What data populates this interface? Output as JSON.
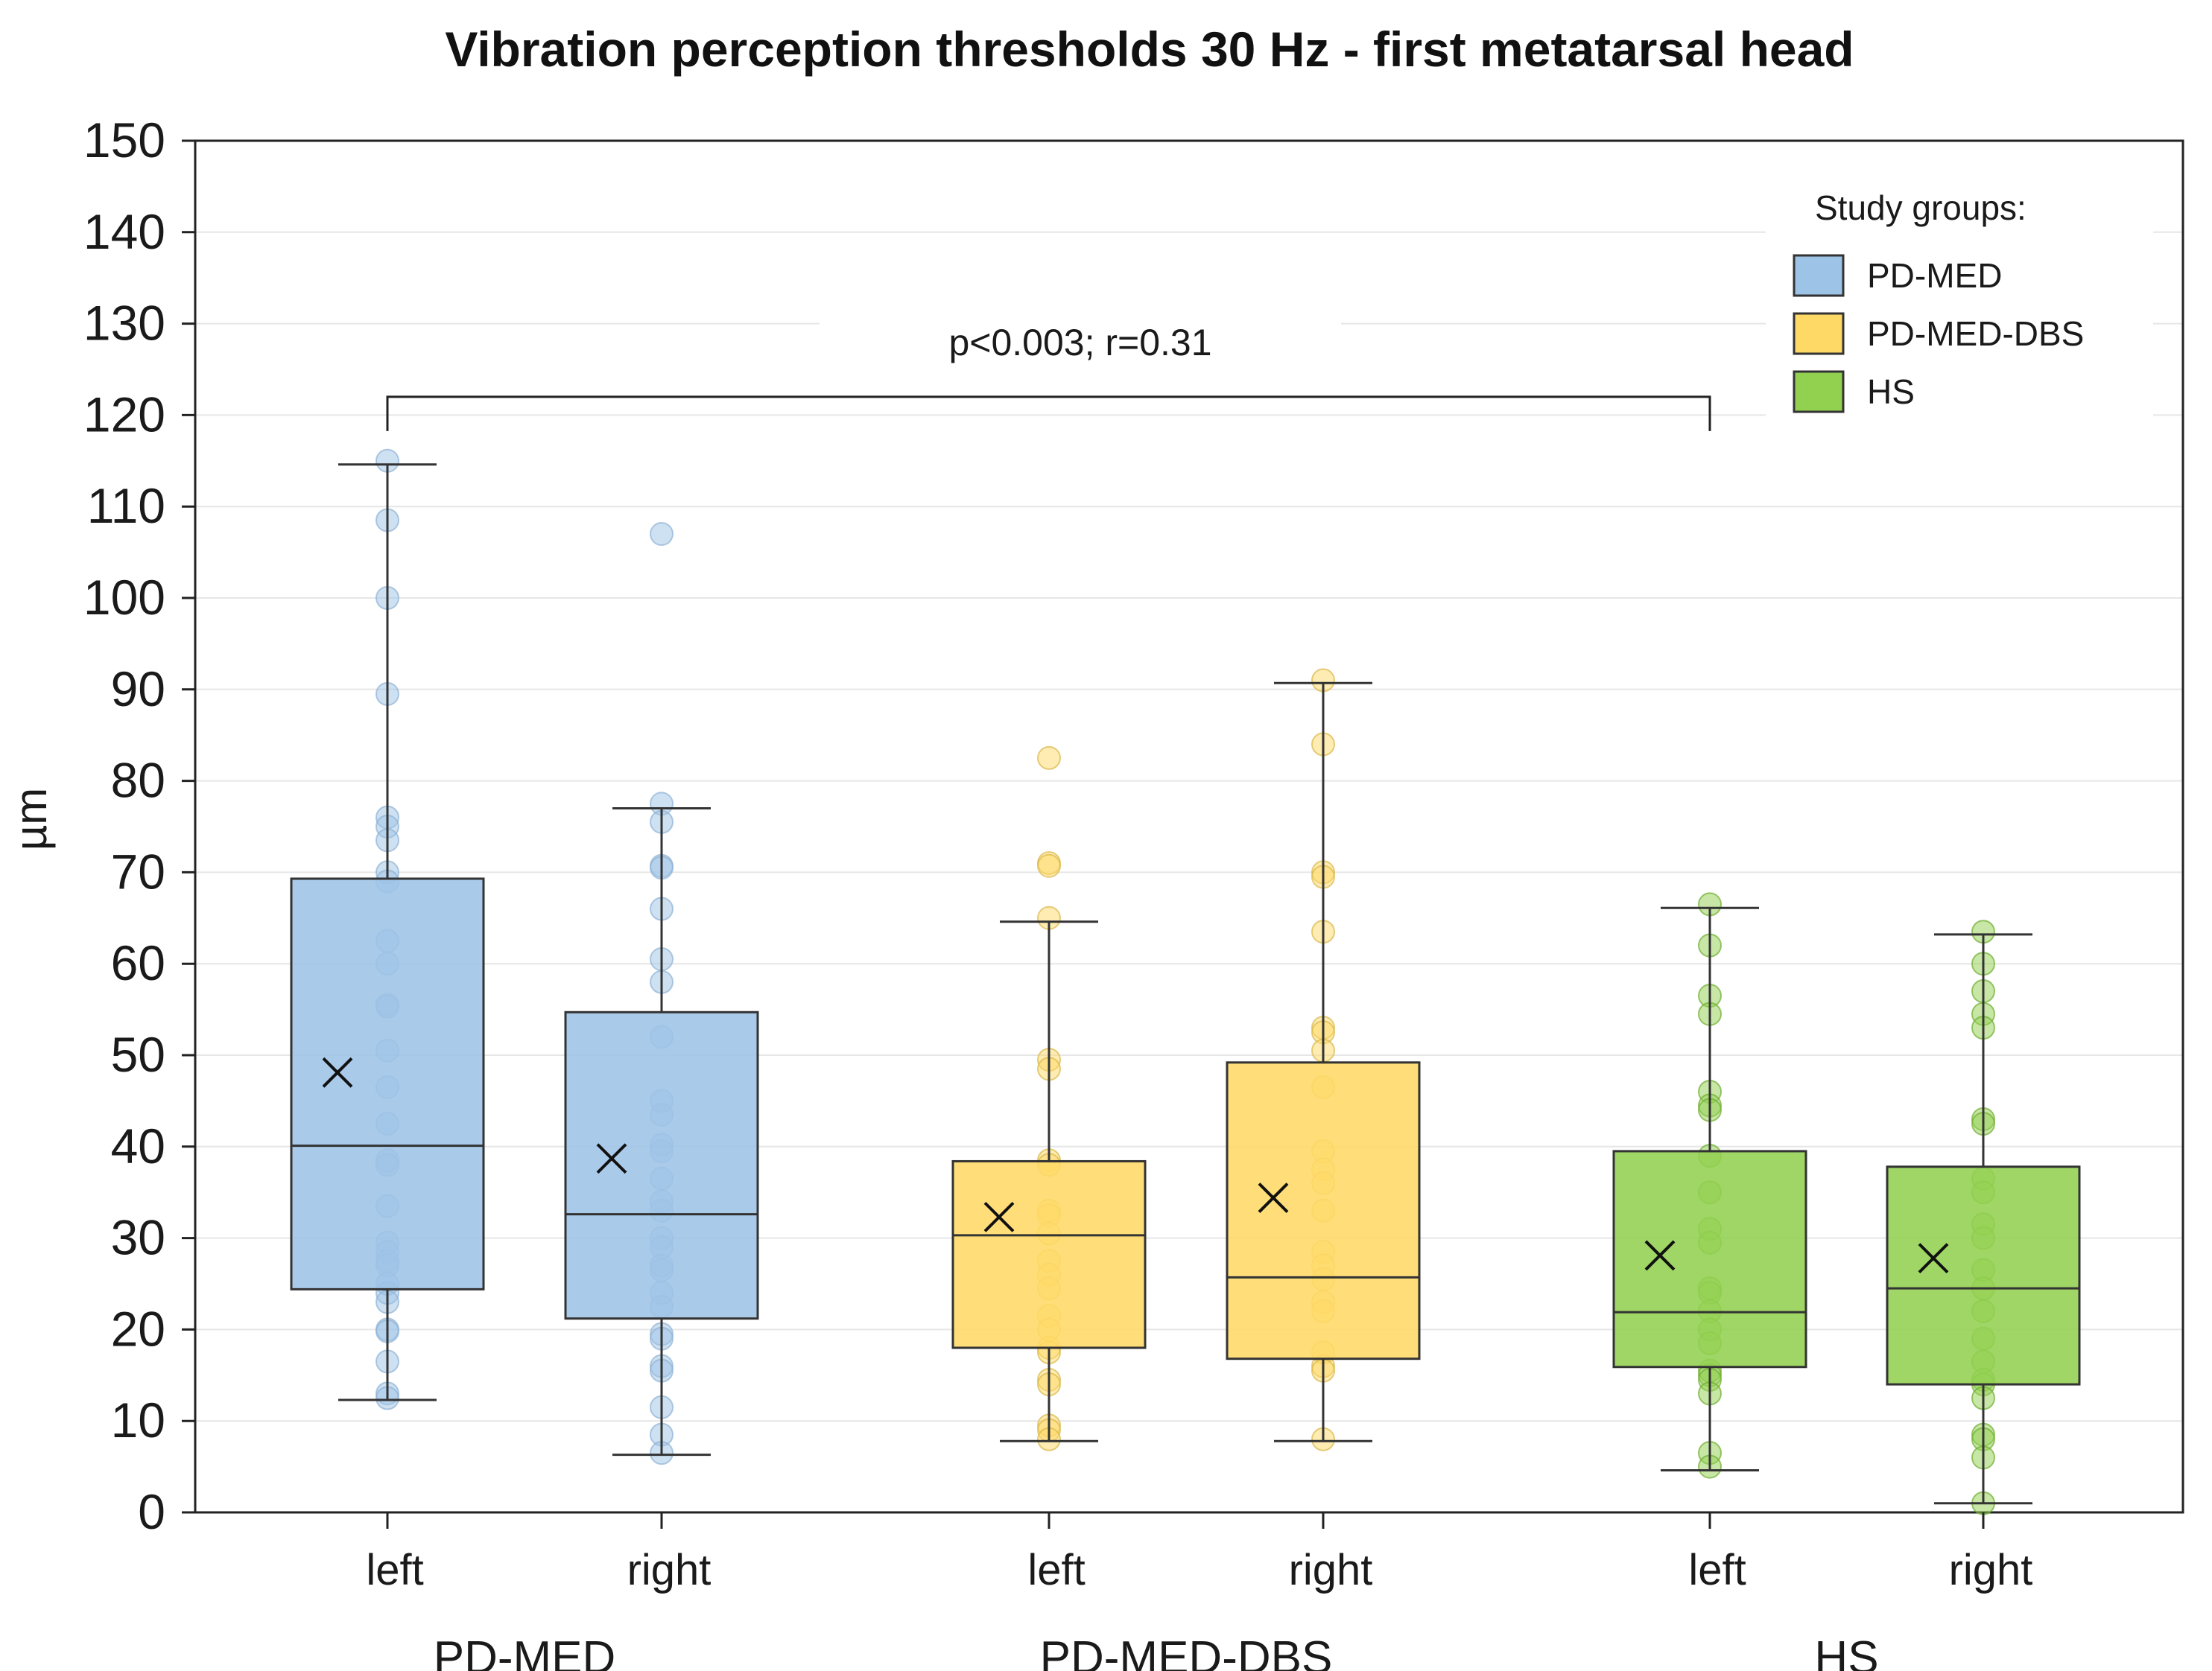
{
  "chart_data": {
    "type": "box",
    "title": "Vibration perception thresholds 30 Hz - first metatarsal head",
    "ylabel": "µm",
    "xlabel": "",
    "ylim": [
      0,
      150
    ],
    "yticks": [
      0,
      10,
      20,
      30,
      40,
      50,
      60,
      70,
      80,
      90,
      100,
      110,
      120,
      130,
      140,
      150
    ],
    "grid": true,
    "legend": {
      "title": "Study groups:",
      "position": "top-right",
      "items": [
        {
          "label": "PD-MED",
          "color": "#9dc3e6"
        },
        {
          "label": "PD-MED-DBS",
          "color": "#ffd966"
        },
        {
          "label": "HS",
          "color": "#92d050"
        }
      ]
    },
    "groups": [
      {
        "name": "PD-MED",
        "color": "#9dc3e6",
        "point_color": "#9dc3e6",
        "point_edge": "#8fb2d4"
      },
      {
        "name": "PD-MED-DBS",
        "color": "#ffd966",
        "point_color": "#ffd966",
        "point_edge": "#d9b84a"
      },
      {
        "name": "HS",
        "color": "#92d050",
        "point_color": "#92d050",
        "point_edge": "#6fae32"
      }
    ],
    "boxes": [
      {
        "group": "PD-MED",
        "side": "left",
        "whisker_low": 12.3,
        "q1": 24.4,
        "median": 40.1,
        "q3": 69.3,
        "whisker_high": 114.6,
        "mean": 48.1,
        "points": [
          115,
          108.5,
          100,
          89.5,
          76,
          75,
          73.5,
          70,
          69,
          62.5,
          60,
          55.5,
          55.3,
          50.5,
          46.5,
          42.5,
          38.5,
          38,
          33.5,
          29.5,
          28.5,
          27.5,
          27,
          25,
          24,
          23,
          20,
          19.8,
          16.5,
          13,
          12.5
        ]
      },
      {
        "group": "PD-MED",
        "side": "right",
        "whisker_low": 6.3,
        "q1": 21.2,
        "median": 32.6,
        "q3": 54.7,
        "whisker_high": 77,
        "mean": 38.7,
        "points": [
          107,
          77.5,
          75.5,
          70.7,
          70.5,
          66,
          60.5,
          58,
          52,
          45,
          43.5,
          40.2,
          39.5,
          36.5,
          34,
          33,
          30,
          29,
          27,
          26.5,
          24,
          22.5,
          19.5,
          19,
          16,
          15.5,
          11.5,
          8.5,
          6.5
        ]
      },
      {
        "group": "PD-MED-DBS",
        "side": "left",
        "whisker_low": 7.8,
        "q1": 18,
        "median": 30.3,
        "q3": 38.4,
        "whisker_high": 64.6,
        "mean": 32.3,
        "points": [
          82.5,
          71,
          70.7,
          65,
          49.5,
          48.5,
          38.5,
          38,
          33,
          32.5,
          30.5,
          27.5,
          26,
          24.5,
          21.5,
          20,
          18,
          17.5,
          14.5,
          14,
          9.5,
          9,
          8
        ]
      },
      {
        "group": "PD-MED-DBS",
        "side": "right",
        "whisker_low": 7.8,
        "q1": 16.8,
        "median": 25.7,
        "q3": 49.2,
        "whisker_high": 90.7,
        "mean": 34.4,
        "points": [
          91,
          84,
          70,
          69.5,
          63.5,
          53,
          52.5,
          50.5,
          46.5,
          39.5,
          37.5,
          36,
          33,
          28.5,
          27,
          25.5,
          23,
          22,
          17.5,
          16,
          15.5,
          8
        ]
      },
      {
        "group": "HS",
        "side": "left",
        "whisker_low": 4.6,
        "q1": 15.9,
        "median": 21.9,
        "q3": 39.5,
        "whisker_high": 66.1,
        "mean": 28.1,
        "points": [
          66.5,
          62,
          56.5,
          54.5,
          46,
          44.5,
          44,
          39,
          35,
          31,
          29.5,
          24.5,
          24,
          22,
          20,
          18.5,
          15.5,
          15,
          14.5,
          13,
          6.5,
          5
        ]
      },
      {
        "group": "HS",
        "side": "right",
        "whisker_low": 1,
        "q1": 14,
        "median": 24.5,
        "q3": 37.8,
        "whisker_high": 63.2,
        "mean": 27.8,
        "points": [
          63.5,
          60,
          57,
          54.5,
          53,
          43,
          42.5,
          36.5,
          35,
          31.5,
          30,
          26.5,
          24.5,
          22,
          19,
          16.5,
          14.5,
          14,
          12.5,
          8.5,
          8,
          6,
          1
        ]
      }
    ],
    "annotation": {
      "text": "p<0.003; r=0.31",
      "from_box": 0,
      "to_box": 4,
      "y_value": 122
    }
  }
}
